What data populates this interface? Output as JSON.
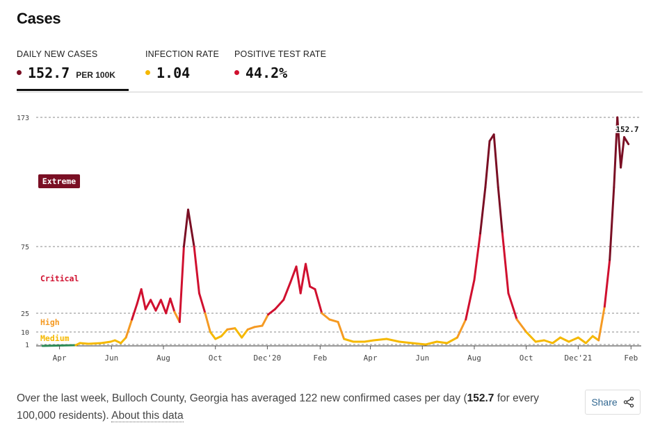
{
  "page": {
    "title": "Cases"
  },
  "tabs": [
    {
      "label": "DAILY NEW CASES",
      "value": "152.7",
      "unit": "PER 100K",
      "dot_color": "#7a0f24",
      "active": true
    },
    {
      "label": "INFECTION RATE",
      "value": "1.04",
      "unit": "",
      "dot_color": "#f5b800",
      "active": false
    },
    {
      "label": "POSITIVE TEST RATE",
      "value": "44.2%",
      "unit": "",
      "dot_color": "#d0102f",
      "active": false
    }
  ],
  "footer": {
    "text_before": "Over the last week, Bulloch County, Georgia has averaged 122 new confirmed cases per day (",
    "highlight": "152.7",
    "text_after": " for every 100,000 residents). ",
    "link": "About this data"
  },
  "share": {
    "label": "Share",
    "icon": "share-icon"
  },
  "chart_data": {
    "type": "line",
    "xlabel": "",
    "ylabel": "",
    "y_ticks": [
      1,
      10,
      25,
      75,
      173
    ],
    "y_tick_labels": [
      "1",
      "10",
      "25",
      "75",
      "173"
    ],
    "x_ticks": [
      {
        "label": "Apr",
        "date": "2020-04-01"
      },
      {
        "label": "Jun",
        "date": "2020-06-01"
      },
      {
        "label": "Aug",
        "date": "2020-08-01"
      },
      {
        "label": "Oct",
        "date": "2020-10-01"
      },
      {
        "label": "Dec'20",
        "date": "2020-12-01"
      },
      {
        "label": "Feb",
        "date": "2021-02-01"
      },
      {
        "label": "Apr",
        "date": "2021-04-01"
      },
      {
        "label": "Jun",
        "date": "2021-06-01"
      },
      {
        "label": "Aug",
        "date": "2021-08-01"
      },
      {
        "label": "Oct",
        "date": "2021-10-01"
      },
      {
        "label": "Dec'21",
        "date": "2021-12-01"
      },
      {
        "label": "Feb",
        "date": "2022-02-01"
      }
    ],
    "risk_levels": [
      {
        "name": "Extreme",
        "min": 75,
        "color": "#7a0f24"
      },
      {
        "name": "Critical",
        "min": 25,
        "color": "#d0102f"
      },
      {
        "name": "High",
        "min": 10,
        "color": "#f59a23"
      },
      {
        "name": "Medium",
        "min": 1,
        "color": "#f5b800"
      },
      {
        "name": "Low",
        "min": 0,
        "color": "#2e8b57"
      }
    ],
    "last_value_label": "152.7",
    "grid": "dashed horizontal at thresholds",
    "series": [
      {
        "points": [
          [
            "2020-03-12",
            0
          ],
          [
            "2020-04-05",
            0.3
          ],
          [
            "2020-04-20",
            0.5
          ],
          [
            "2020-04-25",
            2
          ],
          [
            "2020-05-05",
            1.5
          ],
          [
            "2020-05-20",
            2
          ],
          [
            "2020-05-31",
            3
          ],
          [
            "2020-06-05",
            4
          ],
          [
            "2020-06-12",
            2
          ],
          [
            "2020-06-18",
            6
          ],
          [
            "2020-06-25",
            20
          ],
          [
            "2020-07-01",
            32
          ],
          [
            "2020-07-06",
            43
          ],
          [
            "2020-07-11",
            28
          ],
          [
            "2020-07-17",
            35
          ],
          [
            "2020-07-23",
            27
          ],
          [
            "2020-07-29",
            35
          ],
          [
            "2020-08-04",
            25
          ],
          [
            "2020-08-09",
            36
          ],
          [
            "2020-08-14",
            26
          ],
          [
            "2020-08-20",
            18
          ],
          [
            "2020-08-25",
            75
          ],
          [
            "2020-08-30",
            103
          ],
          [
            "2020-09-06",
            75
          ],
          [
            "2020-09-12",
            40
          ],
          [
            "2020-09-19",
            25
          ],
          [
            "2020-09-25",
            10
          ],
          [
            "2020-10-01",
            5
          ],
          [
            "2020-10-08",
            7
          ],
          [
            "2020-10-15",
            12
          ],
          [
            "2020-10-24",
            13
          ],
          [
            "2020-11-01",
            6
          ],
          [
            "2020-11-08",
            12
          ],
          [
            "2020-11-16",
            14
          ],
          [
            "2020-11-25",
            15
          ],
          [
            "2020-12-02",
            24
          ],
          [
            "2020-12-10",
            28
          ],
          [
            "2020-12-20",
            35
          ],
          [
            "2020-12-28",
            48
          ],
          [
            "2021-01-04",
            60
          ],
          [
            "2021-01-09",
            40
          ],
          [
            "2021-01-15",
            62
          ],
          [
            "2021-01-20",
            45
          ],
          [
            "2021-01-26",
            43
          ],
          [
            "2021-02-03",
            25
          ],
          [
            "2021-02-12",
            20
          ],
          [
            "2021-02-22",
            18
          ],
          [
            "2021-03-01",
            5
          ],
          [
            "2021-03-12",
            3
          ],
          [
            "2021-03-25",
            3
          ],
          [
            "2021-04-05",
            4
          ],
          [
            "2021-04-20",
            5
          ],
          [
            "2021-05-05",
            3
          ],
          [
            "2021-05-20",
            2
          ],
          [
            "2021-06-05",
            1
          ],
          [
            "2021-06-18",
            3
          ],
          [
            "2021-06-30",
            2
          ],
          [
            "2021-07-12",
            6
          ],
          [
            "2021-07-22",
            20
          ],
          [
            "2021-08-01",
            50
          ],
          [
            "2021-08-08",
            85
          ],
          [
            "2021-08-14",
            120
          ],
          [
            "2021-08-19",
            155
          ],
          [
            "2021-08-24",
            160
          ],
          [
            "2021-08-29",
            120
          ],
          [
            "2021-09-03",
            85
          ],
          [
            "2021-09-10",
            40
          ],
          [
            "2021-09-20",
            20
          ],
          [
            "2021-10-01",
            10
          ],
          [
            "2021-10-12",
            3
          ],
          [
            "2021-10-22",
            4
          ],
          [
            "2021-11-01",
            2
          ],
          [
            "2021-11-10",
            6
          ],
          [
            "2021-11-20",
            3
          ],
          [
            "2021-12-01",
            6
          ],
          [
            "2021-12-10",
            2
          ],
          [
            "2021-12-18",
            7
          ],
          [
            "2021-12-25",
            4
          ],
          [
            "2022-01-01",
            30
          ],
          [
            "2022-01-07",
            65
          ],
          [
            "2022-01-12",
            120
          ],
          [
            "2022-01-16",
            173
          ],
          [
            "2022-01-20",
            135
          ],
          [
            "2022-01-24",
            158
          ],
          [
            "2022-01-29",
            152.7
          ]
        ]
      }
    ]
  }
}
